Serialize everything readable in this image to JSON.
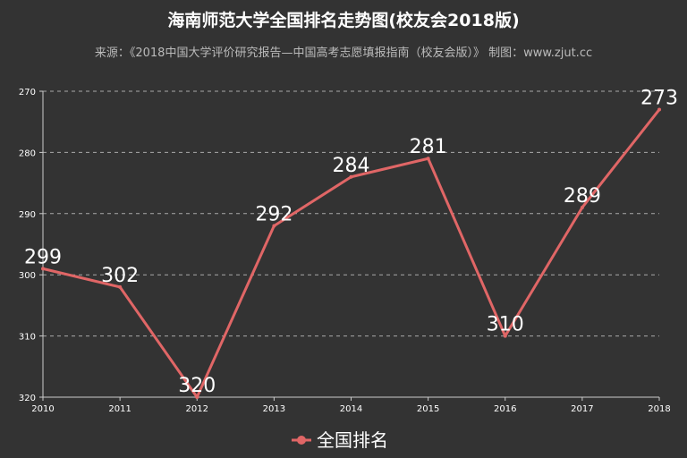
{
  "header": {
    "title": "海南师范大学全国排名走势图(校友会2018版)",
    "subtitle": "来源：《2018中国大学评价研究报告—中国高考志愿填报指南（校友会版）》 制图：www.zjut.cc"
  },
  "chart_data": {
    "type": "line",
    "title": "海南师范大学全国排名走势图(校友会2018版)",
    "subtitle": "来源：《2018中国大学评价研究报告—中国高考志愿填报指南（校友会版）》 制图：www.zjut.cc",
    "x": [
      "2010",
      "2011",
      "2012",
      "2013",
      "2014",
      "2015",
      "2016",
      "2017",
      "2018"
    ],
    "series": [
      {
        "name": "全国排名",
        "values": [
          299,
          302,
          320,
          292,
          284,
          281,
          310,
          289,
          273
        ],
        "color": "#e06666"
      }
    ],
    "y_ticks": [
      270,
      280,
      290,
      300,
      310,
      320
    ],
    "ylim": [
      270,
      320
    ],
    "y_inverted": true,
    "grid": "horizontal-dashed",
    "legend": "bottom-center"
  }
}
